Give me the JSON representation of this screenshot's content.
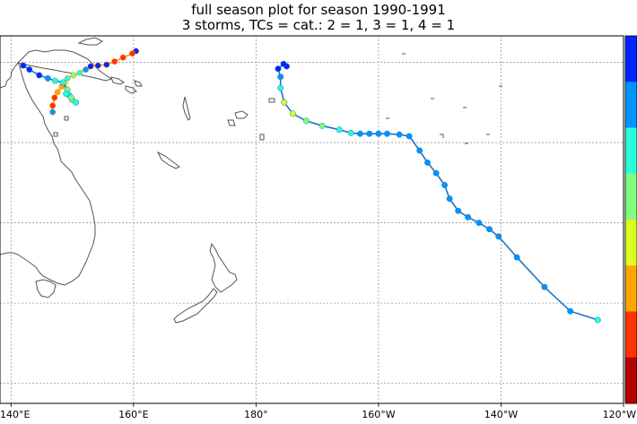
{
  "title_line1": "full season plot for season 1990-1991",
  "title_line2": "3 storms, TCs = cat.: 2 = 1, 3 = 1, 4 = 1",
  "x_tick_labels": [
    "140°E",
    "160°E",
    "180°",
    "160°W",
    "140°W",
    "120°W"
  ],
  "x_tick_lons": [
    140,
    160,
    180,
    200,
    220,
    240
  ],
  "map_extent": {
    "lon": [
      138.2,
      240
    ],
    "lat": [
      -57.5,
      -11.7
    ]
  },
  "lat_gridlines": [
    -15,
    -25,
    -35,
    -45,
    -55
  ],
  "colorbar": {
    "colors": [
      "#0026ff",
      "#0094ff",
      "#27ffdb",
      "#7fff7f",
      "#d9ff22",
      "#ffa600",
      "#ff3300",
      "#b30000"
    ]
  },
  "colors": {
    "land_outline": "#555555",
    "grid": "#999999"
  },
  "storms": [
    {
      "line_color": "#1e73c2",
      "points": [
        [
          185.0,
          -15.5,
          "#0026ff"
        ],
        [
          184.5,
          -15.2,
          "#0026ff"
        ],
        [
          183.6,
          -15.8,
          "#0026ff"
        ],
        [
          184.0,
          -16.8,
          "#0094ff"
        ],
        [
          184.0,
          -18.2,
          "#27ffdb"
        ],
        [
          184.6,
          -20.0,
          "#d9ff22"
        ],
        [
          186.0,
          -21.4,
          "#d9ff22"
        ],
        [
          188.2,
          -22.3,
          "#7fff7f"
        ],
        [
          190.8,
          -22.9,
          "#7fff7f"
        ],
        [
          193.6,
          -23.4,
          "#27ffdb"
        ],
        [
          195.5,
          -23.8,
          "#27ffdb"
        ],
        [
          197.0,
          -23.9,
          "#0094ff"
        ],
        [
          198.5,
          -23.9,
          "#0094ff"
        ],
        [
          200.0,
          -23.9,
          "#0094ff"
        ],
        [
          201.4,
          -23.9,
          "#0094ff"
        ],
        [
          203.4,
          -24.0,
          "#0094ff"
        ],
        [
          205.0,
          -24.2,
          "#0094ff"
        ],
        [
          206.7,
          -26.0,
          "#0094ff"
        ],
        [
          208.0,
          -27.5,
          "#0094ff"
        ],
        [
          209.4,
          -28.8,
          "#0094ff"
        ],
        [
          210.8,
          -30.3,
          "#0094ff"
        ],
        [
          211.6,
          -32.0,
          "#0094ff"
        ],
        [
          213.0,
          -33.5,
          "#0094ff"
        ],
        [
          214.6,
          -34.3,
          "#0094ff"
        ],
        [
          216.4,
          -35.0,
          "#0094ff"
        ],
        [
          218.1,
          -35.8,
          "#0094ff"
        ],
        [
          219.6,
          -36.7,
          "#0094ff"
        ],
        [
          222.6,
          -39.3,
          "#0094ff"
        ],
        [
          227.1,
          -43.0,
          "#0094ff"
        ],
        [
          231.3,
          -46.0,
          "#0094ff"
        ],
        [
          235.8,
          -47.1,
          "#27ffdb"
        ]
      ]
    },
    {
      "line_color": "#ff8c1a",
      "points": [
        [
          160.4,
          -13.6,
          "#0026ff"
        ],
        [
          159.8,
          -13.9,
          "#ff3300"
        ],
        [
          158.3,
          -14.4,
          "#ff3300"
        ],
        [
          156.9,
          -14.9,
          "#ff3300"
        ],
        [
          155.6,
          -15.3,
          "#0026ff"
        ],
        [
          154.2,
          -15.4,
          "#0026ff"
        ],
        [
          153.0,
          -15.5,
          "#0026ff"
        ],
        [
          152.2,
          -15.9,
          "#0094ff"
        ],
        [
          151.2,
          -16.3,
          "#27ffdb"
        ],
        [
          150.2,
          -16.6,
          "#7fff7f"
        ],
        [
          149.2,
          -17.0,
          "#27ffdb"
        ],
        [
          148.8,
          -17.6,
          "#d9ff22"
        ],
        [
          148.3,
          -18.0,
          "#ffa600"
        ],
        [
          147.6,
          -18.7,
          "#ffa600"
        ],
        [
          147.1,
          -19.4,
          "#ff3300"
        ],
        [
          146.8,
          -20.4,
          "#ff3300"
        ],
        [
          146.8,
          -21.2,
          "#0094ff"
        ]
      ]
    },
    {
      "line_color": "#1e73c2",
      "points": [
        [
          142.0,
          -15.4,
          "#0026ff"
        ],
        [
          143.0,
          -15.9,
          "#0026ff"
        ],
        [
          144.6,
          -16.6,
          "#0026ff"
        ],
        [
          146.0,
          -17.0,
          "#0094ff"
        ],
        [
          147.2,
          -17.3,
          "#27ffdb"
        ],
        [
          148.5,
          -17.5,
          "#27ffdb"
        ],
        [
          149.2,
          -18.4,
          "#7fff7f"
        ],
        [
          149.5,
          -19.1,
          "#27ffdb"
        ],
        [
          150.0,
          -19.7,
          "#7fff7f"
        ],
        [
          150.6,
          -20.0,
          "#27ffdb"
        ],
        [
          149.8,
          -19.4,
          "#7fff7f"
        ],
        [
          149.0,
          -18.9,
          "#27ffdb"
        ]
      ]
    }
  ]
}
